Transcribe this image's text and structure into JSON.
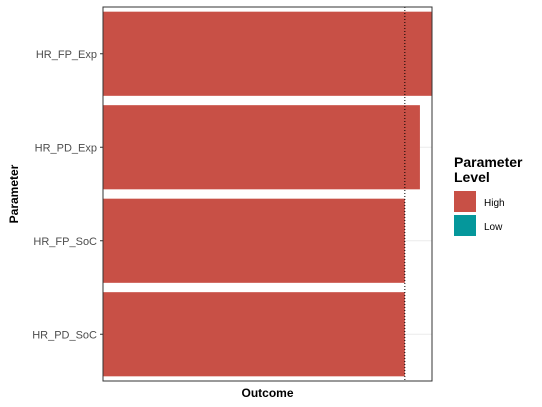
{
  "chart_data": {
    "type": "bar",
    "orientation": "horizontal",
    "categories": [
      "HR_FP_Exp",
      "HR_PD_Exp",
      "HR_FP_SoC",
      "HR_PD_SoC"
    ],
    "series": [
      {
        "name": "High",
        "color": "#c85046",
        "values": [
          1.09,
          1.05,
          1.0,
          1.0
        ]
      },
      {
        "name": "Low",
        "color": "#05979b",
        "values": [
          null,
          null,
          null,
          null
        ]
      }
    ],
    "reference_line": 1.0,
    "xlim": [
      0.0,
      1.09
    ],
    "xlabel": "Outcome",
    "ylabel": "Parameter",
    "x_tick_labels_shown": false,
    "grid": true,
    "legend": {
      "title_lines": [
        "Parameter",
        "Level"
      ],
      "position": "right",
      "entries": [
        {
          "label": "High",
          "color": "#c85046"
        },
        {
          "label": "Low",
          "color": "#05979b"
        }
      ]
    }
  }
}
